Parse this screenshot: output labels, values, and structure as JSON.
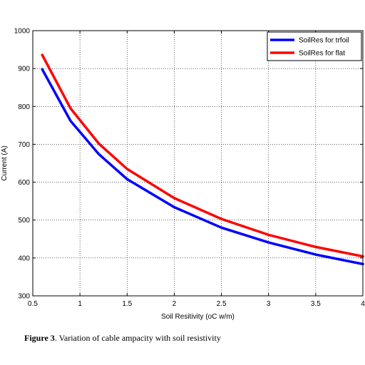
{
  "chart_data": {
    "type": "line",
    "title": "",
    "xlabel": "Soil Resitivity (oC w/m)",
    "ylabel": "Current (A)",
    "xlim": [
      0.5,
      4
    ],
    "ylim": [
      300,
      1000
    ],
    "x_ticks": [
      "0.5",
      "1",
      "1.5",
      "2",
      "2.5",
      "3",
      "3.5",
      "4"
    ],
    "y_ticks": [
      "300",
      "400",
      "500",
      "600",
      "700",
      "800",
      "900",
      "1000"
    ],
    "grid": true,
    "legend_position": "top-right",
    "series": [
      {
        "name": "SoilRes for trfoil",
        "color": "#0000ff",
        "x": [
          0.6,
          0.9,
          1.2,
          1.5,
          2.0,
          2.5,
          3.0,
          3.5,
          4.0
        ],
        "y": [
          898,
          762,
          674,
          608,
          534,
          480,
          441,
          409,
          384
        ]
      },
      {
        "name": "SoilRes for flat",
        "color": "#ff0000",
        "x": [
          0.6,
          0.9,
          1.2,
          1.5,
          2.0,
          2.5,
          3.0,
          3.5,
          4.0
        ],
        "y": [
          936,
          795,
          702,
          635,
          558,
          503,
          461,
          429,
          404
        ]
      }
    ]
  },
  "caption": {
    "label": "Figure 3",
    "text": ". Variation of cable ampacity with soil resistivity"
  }
}
